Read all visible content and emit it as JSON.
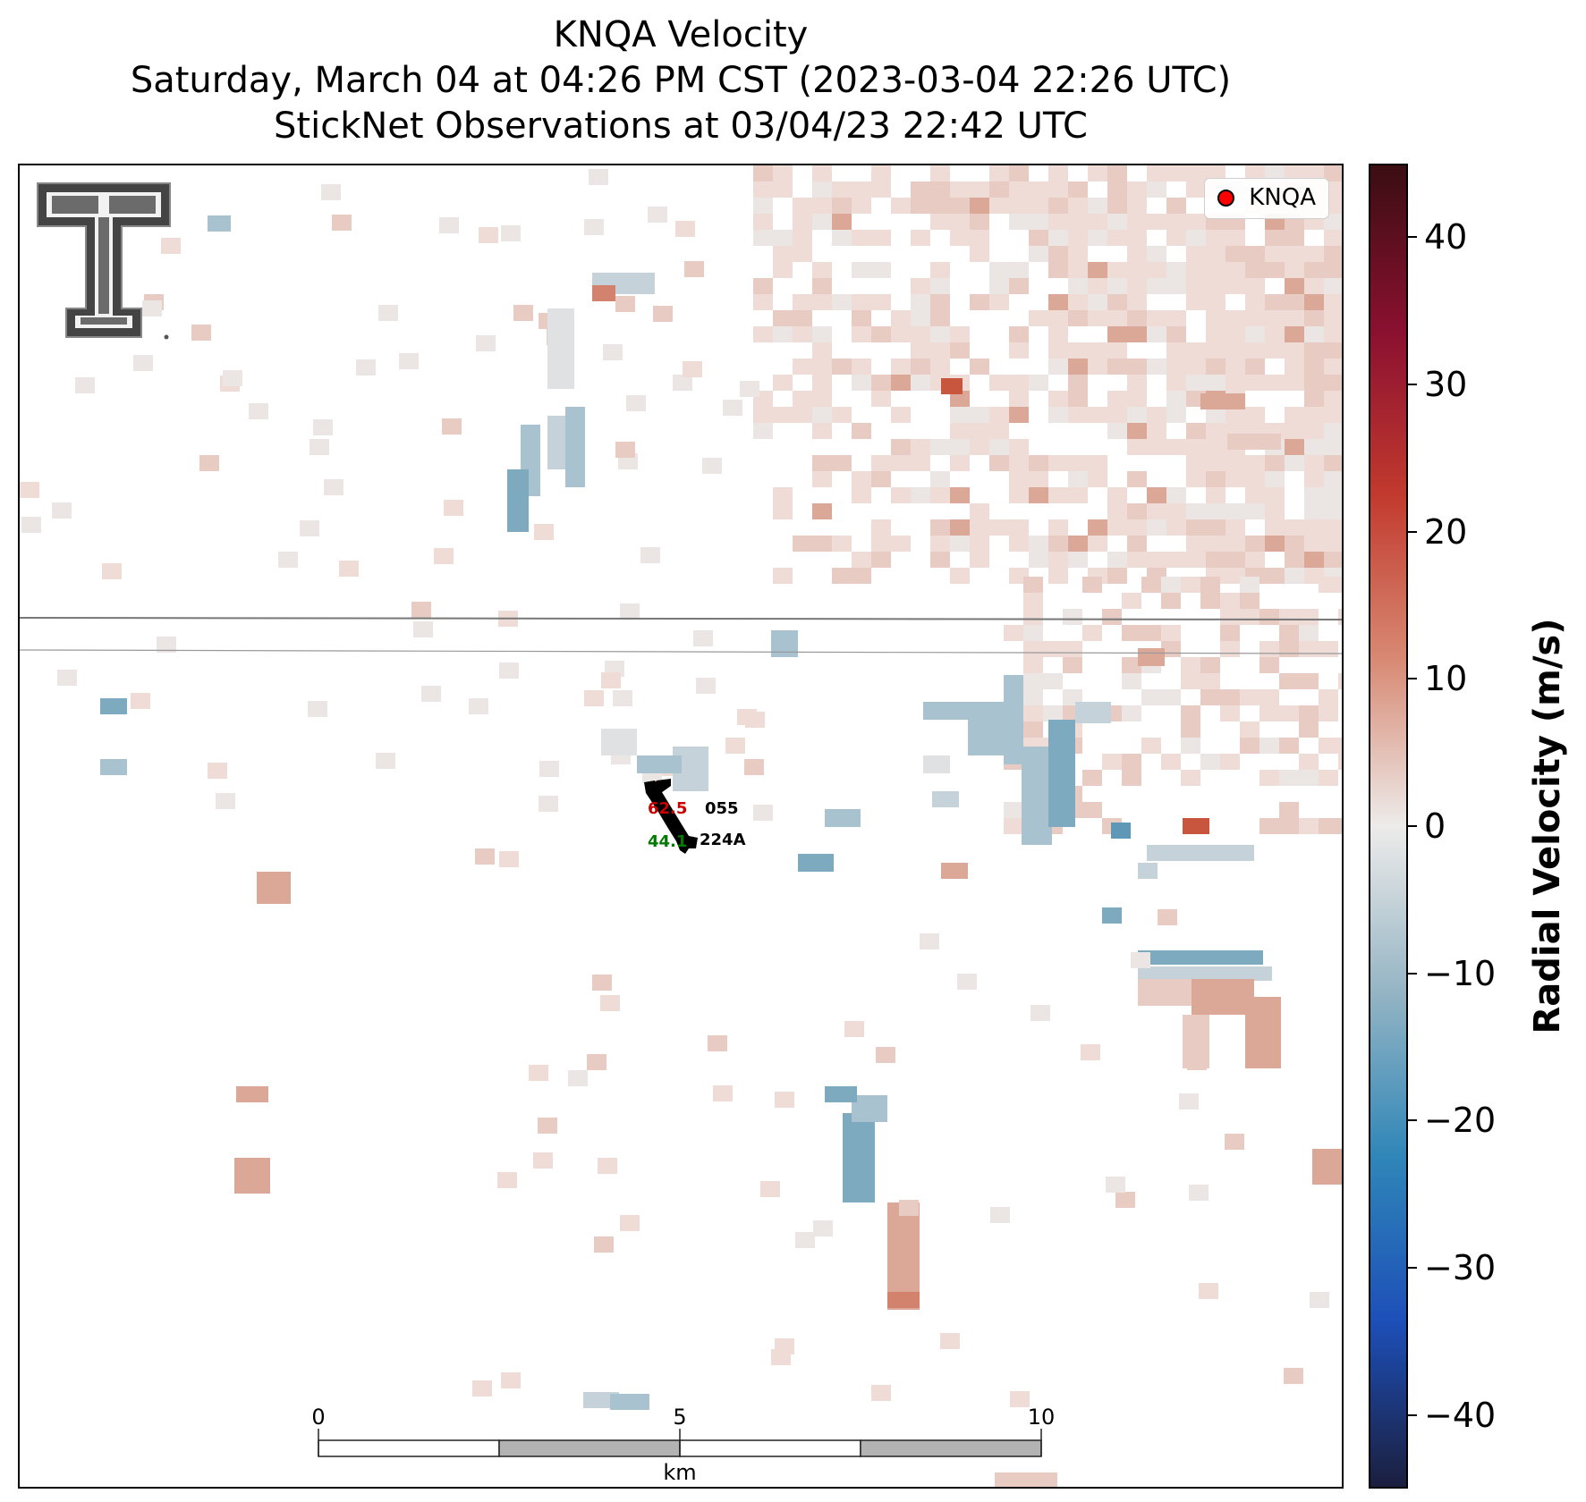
{
  "title": {
    "line1": "KNQA Velocity",
    "line2": "Saturday, March 04 at 04:26 PM CST (2023-03-04 22:26 UTC)",
    "line3": "StickNet Observations at 03/04/23 22:42 UTC"
  },
  "legend": {
    "label": "KNQA",
    "marker_color": "#ff0000"
  },
  "colorbar": {
    "title": "Radial Velocity (m/s)",
    "min": -45,
    "max": 45,
    "ticks": [
      "40",
      "30",
      "20",
      "10",
      "0",
      "−10",
      "−20",
      "−30",
      "−40"
    ],
    "tick_values": [
      40,
      30,
      20,
      10,
      0,
      -10,
      -20,
      -30,
      -40
    ],
    "colors": [
      "#3a0e12",
      "#8a1030",
      "#c23a2e",
      "#d88a74",
      "#edebea",
      "#95b5c4",
      "#2f86b8",
      "#1d4fb8",
      "#1b1f3e"
    ]
  },
  "station": {
    "id": "224A",
    "code": "055",
    "temperature": "62.5",
    "dewpoint": "44.1",
    "temperature_color": "#cc0000",
    "dewpoint_color": "#007a00"
  },
  "scalebar": {
    "ticks": [
      "0",
      "5",
      "10"
    ],
    "unit": "km"
  },
  "logo": {
    "icon": "texas-tech-double-t-logo"
  }
}
